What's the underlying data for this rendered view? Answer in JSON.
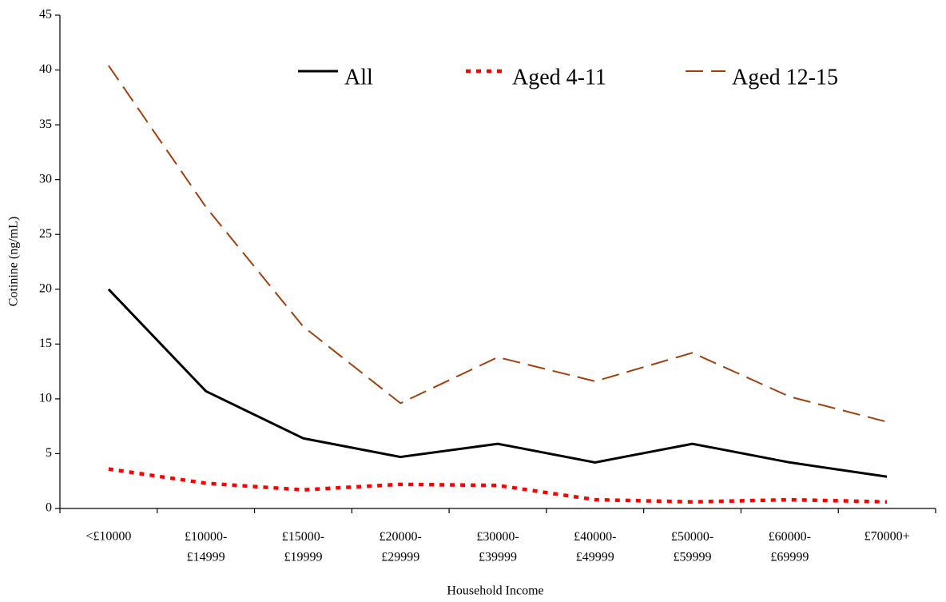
{
  "chart_data": {
    "type": "line",
    "x_label": "Household Income",
    "y_label": "Cotinine (ng/mL)",
    "categories": [
      "<£10000",
      "£10000-\n£14999",
      "£15000-\n£19999",
      "£20000-\n£29999",
      "£30000-\n£39999",
      "£40000-\n£49999",
      "£50000-\n£59999",
      "£60000-\n£69999",
      "£70000+"
    ],
    "series": [
      {
        "name": "All",
        "color": "#000000",
        "dash": "solid",
        "values": [
          20,
          10.7,
          6.4,
          4.7,
          5.9,
          4.2,
          5.9,
          4.2,
          2.9
        ]
      },
      {
        "name": "Aged 4-11",
        "color": "#ff0000",
        "dash": "dotted",
        "values": [
          3.6,
          2.3,
          1.7,
          2.2,
          2.1,
          0.8,
          0.6,
          0.8,
          0.6
        ]
      },
      {
        "name": "Aged 12-15",
        "color": "#a0400f",
        "dash": "dashed",
        "values": [
          40.4,
          27.5,
          16.6,
          9.6,
          13.8,
          11.6,
          14.2,
          10.2,
          7.9
        ]
      }
    ],
    "ylim": [
      0,
      45
    ],
    "yticks": [
      0,
      5,
      10,
      15,
      20,
      25,
      30,
      35,
      40,
      45
    ],
    "legend": "top",
    "grid": false
  }
}
